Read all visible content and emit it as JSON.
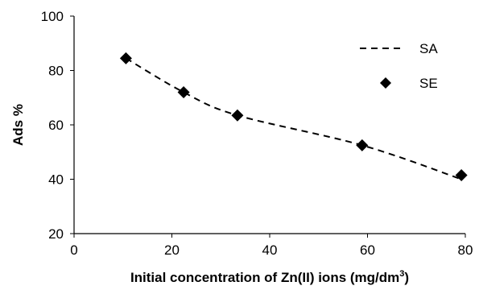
{
  "chart_data": {
    "type": "scatter",
    "title": "",
    "xlabel": "Initial concentration of  Zn(II) ions (mg/dm",
    "xlabel_superscript": "3",
    "xlabel_suffix": ")",
    "ylabel": "Ads %",
    "xlim": [
      0,
      80
    ],
    "ylim": [
      20,
      100
    ],
    "xticks": [
      0,
      20,
      40,
      60,
      80
    ],
    "yticks": [
      20,
      40,
      60,
      80,
      100
    ],
    "grid": false,
    "legend_position": "top-right",
    "series": [
      {
        "name": "SA",
        "style": "dashed-line",
        "color": "#000000",
        "x": [
          10.6,
          22.4,
          33.4,
          58.9,
          79.2
        ],
        "y": [
          84.5,
          72.0,
          63.5,
          52.5,
          40.0
        ]
      },
      {
        "name": "SE",
        "style": "diamond-marker",
        "color": "#000000",
        "x": [
          10.6,
          22.4,
          33.4,
          58.9,
          79.2
        ],
        "y": [
          84.5,
          72.0,
          63.5,
          52.5,
          41.5
        ]
      }
    ]
  }
}
